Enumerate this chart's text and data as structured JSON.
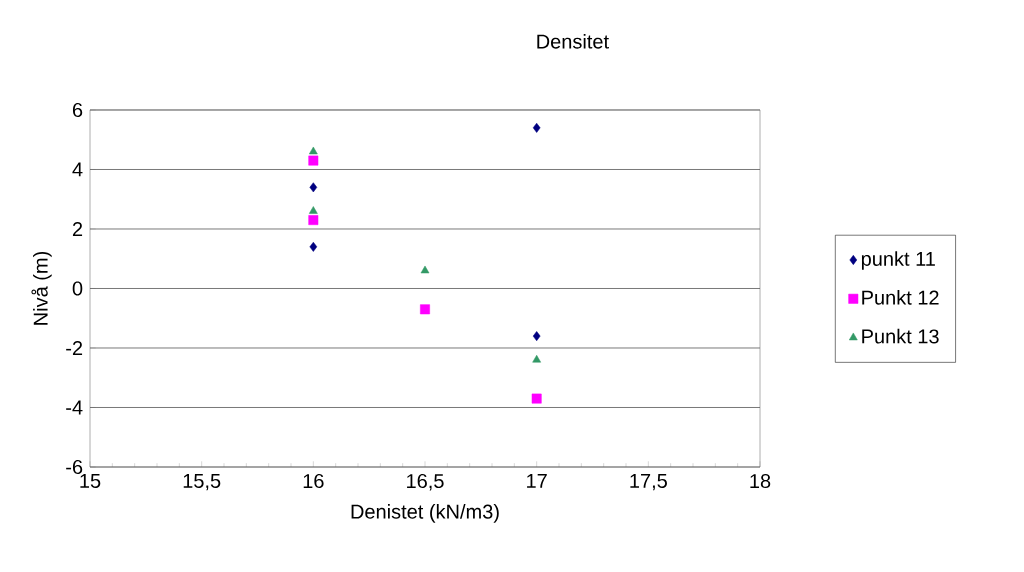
{
  "chart_data": {
    "type": "scatter",
    "title": "Densitet",
    "xlabel": "Denistet (kN/m3)",
    "ylabel": "Nivå (m)",
    "xlim": [
      15,
      18
    ],
    "ylim": [
      -6,
      6
    ],
    "xticks": [
      15,
      {
        "value": 15.5,
        "label": "15,5"
      },
      16,
      {
        "value": 16.5,
        "label": "16,5"
      },
      17,
      {
        "value": 17.5,
        "label": "17,5"
      },
      18
    ],
    "yticks": [
      -6,
      -4,
      -2,
      0,
      2,
      4,
      6
    ],
    "grid": "y",
    "legend": "right",
    "series": [
      {
        "name": "punkt 11",
        "color": "#000080",
        "marker": "diamond",
        "x": [
          16,
          16,
          17,
          17
        ],
        "values": [
          3.4,
          1.4,
          5.4,
          -1.6
        ]
      },
      {
        "name": "Punkt 12",
        "color": "#ff00ff",
        "marker": "square",
        "x": [
          16,
          16,
          16.5,
          17
        ],
        "values": [
          4.3,
          2.3,
          -0.7,
          -3.7
        ]
      },
      {
        "name": "Punkt 13",
        "color": "#339966",
        "marker": "triangle",
        "x": [
          16,
          16,
          16.5,
          17
        ],
        "values": [
          4.6,
          2.6,
          0.6,
          -2.4
        ]
      }
    ]
  }
}
